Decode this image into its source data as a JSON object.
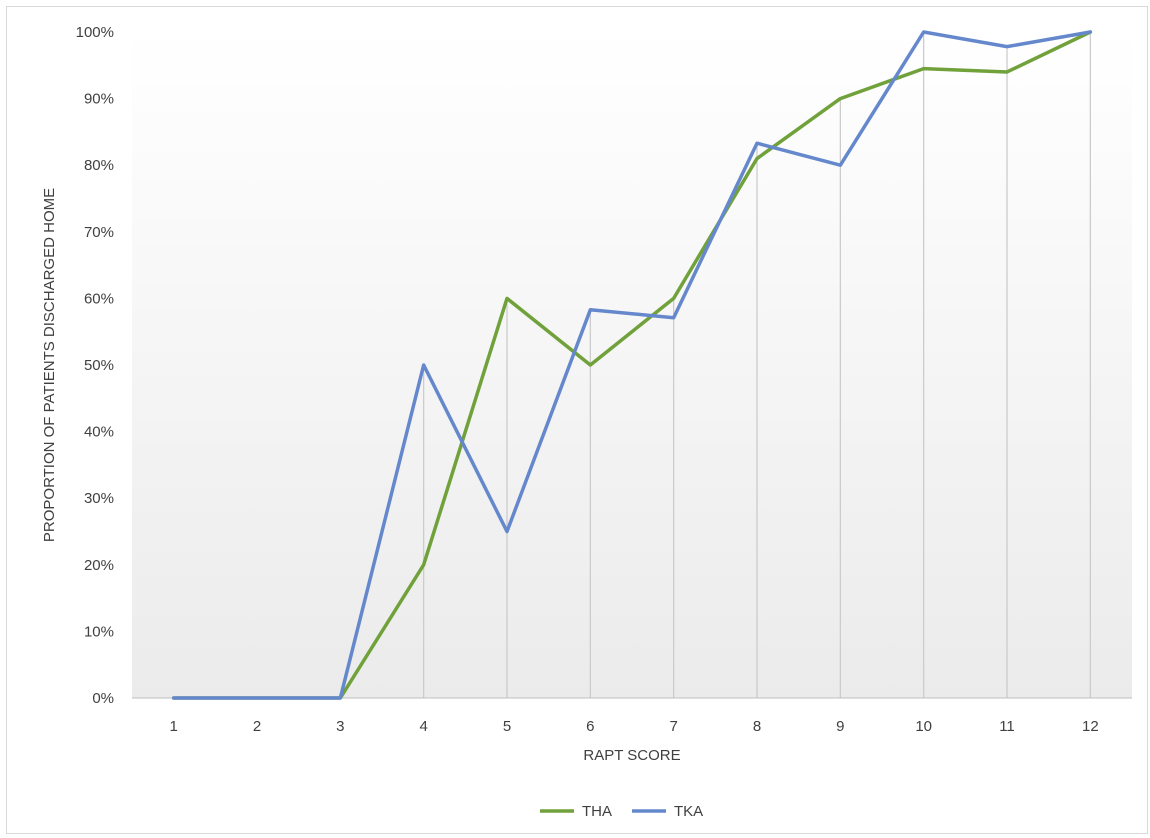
{
  "chart_data": {
    "type": "line",
    "title": "",
    "xlabel": "RAPT SCORE",
    "ylabel": "PROPORTION OF PATIENTS DISCHARGED HOME",
    "categories": [
      "1",
      "2",
      "3",
      "4",
      "5",
      "6",
      "7",
      "8",
      "9",
      "10",
      "11",
      "12"
    ],
    "ylim": [
      0,
      100
    ],
    "yticks": [
      "0%",
      "10%",
      "20%",
      "30%",
      "40%",
      "50%",
      "60%",
      "70%",
      "80%",
      "90%",
      "100%"
    ],
    "y_unit": "%",
    "grid": "vertical drop lines at each category",
    "legend_position": "bottom",
    "series": [
      {
        "name": "THA",
        "color": "#70a13a",
        "values": [
          0,
          0,
          0,
          20,
          60,
          50,
          60,
          81,
          90,
          94.5,
          94,
          100
        ]
      },
      {
        "name": "TKA",
        "color": "#6588cc",
        "values": [
          0,
          0,
          0,
          50,
          25,
          58.3,
          57.1,
          83.3,
          80,
          100,
          97.8,
          100
        ]
      }
    ]
  }
}
